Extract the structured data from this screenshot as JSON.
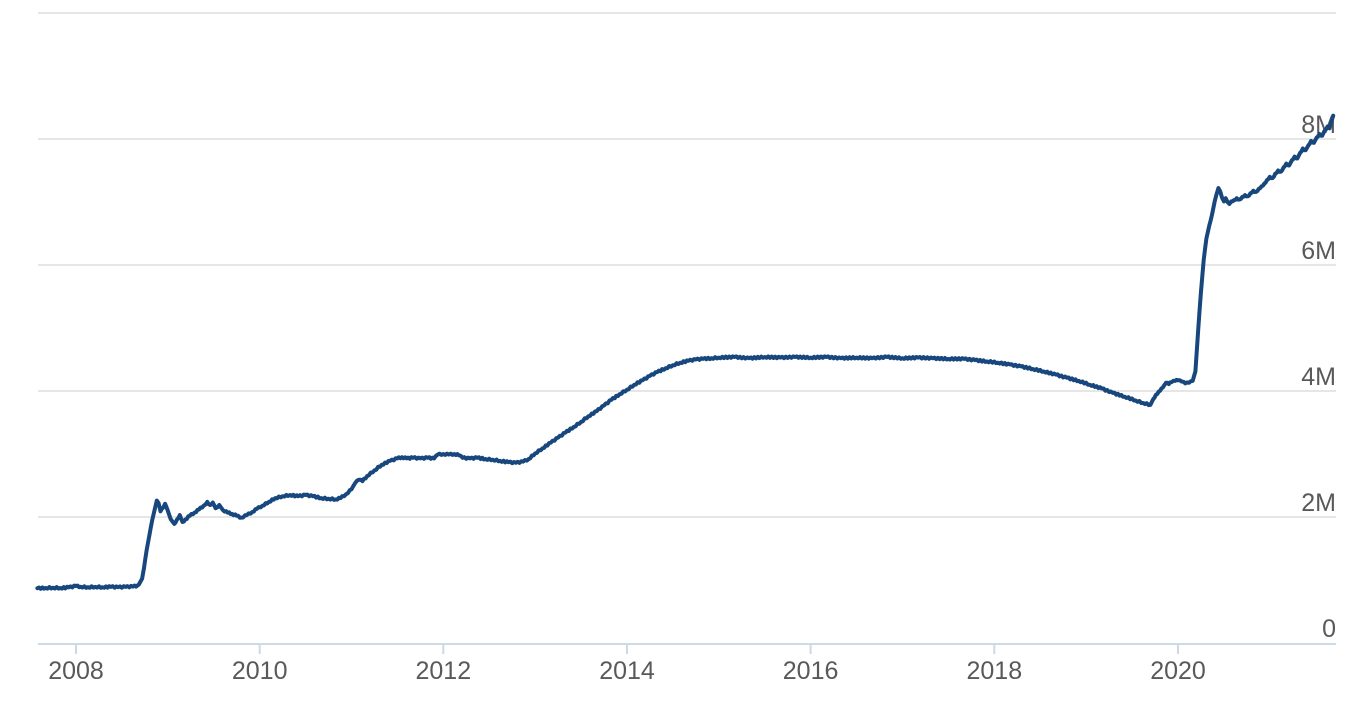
{
  "chart_data": {
    "type": "line",
    "title": "",
    "xlabel": "",
    "ylabel": "",
    "unit_suffix": "M",
    "legend": [],
    "grid": true,
    "y_axis_side": "right",
    "colors": {
      "line": "#17477c",
      "grid": "#e6e6e6",
      "axis": "#ccd9e6",
      "label": "#595959",
      "background": "#ffffff"
    },
    "xlim": [
      2007.58,
      2021.69
    ],
    "ylim": [
      0,
      10
    ],
    "y_ticks": [
      {
        "value": 0,
        "label": "0"
      },
      {
        "value": 2,
        "label": "2M"
      },
      {
        "value": 4,
        "label": "4M"
      },
      {
        "value": 6,
        "label": "6M"
      },
      {
        "value": 8,
        "label": "8M"
      },
      {
        "value": 10,
        "label": ""
      }
    ],
    "x_ticks": [
      {
        "value": 2008,
        "label": "2008"
      },
      {
        "value": 2010,
        "label": "2010"
      },
      {
        "value": 2012,
        "label": "2012"
      },
      {
        "value": 2014,
        "label": "2014"
      },
      {
        "value": 2016,
        "label": "2016"
      },
      {
        "value": 2018,
        "label": "2018"
      },
      {
        "value": 2020,
        "label": "2020"
      }
    ],
    "points": [
      [
        2007.58,
        0.87
      ],
      [
        2007.67,
        0.873
      ],
      [
        2007.75,
        0.878
      ],
      [
        2007.83,
        0.873
      ],
      [
        2007.92,
        0.882
      ],
      [
        2008.0,
        0.905
      ],
      [
        2008.05,
        0.892
      ],
      [
        2008.13,
        0.886
      ],
      [
        2008.21,
        0.891
      ],
      [
        2008.29,
        0.886
      ],
      [
        2008.38,
        0.891
      ],
      [
        2008.46,
        0.886
      ],
      [
        2008.54,
        0.891
      ],
      [
        2008.62,
        0.896
      ],
      [
        2008.67,
        0.912
      ],
      [
        2008.7,
        0.97
      ],
      [
        2008.72,
        1.02
      ],
      [
        2008.74,
        1.19
      ],
      [
        2008.77,
        1.48
      ],
      [
        2008.8,
        1.72
      ],
      [
        2008.83,
        1.95
      ],
      [
        2008.86,
        2.14
      ],
      [
        2008.88,
        2.26
      ],
      [
        2008.9,
        2.22
      ],
      [
        2008.92,
        2.09
      ],
      [
        2008.95,
        2.15
      ],
      [
        2008.97,
        2.21
      ],
      [
        2009.0,
        2.1
      ],
      [
        2009.03,
        1.97
      ],
      [
        2009.07,
        1.89
      ],
      [
        2009.1,
        1.96
      ],
      [
        2009.13,
        2.03
      ],
      [
        2009.16,
        1.92
      ],
      [
        2009.19,
        1.96
      ],
      [
        2009.24,
        2.02
      ],
      [
        2009.29,
        2.07
      ],
      [
        2009.34,
        2.12
      ],
      [
        2009.39,
        2.18
      ],
      [
        2009.43,
        2.24
      ],
      [
        2009.46,
        2.19
      ],
      [
        2009.49,
        2.23
      ],
      [
        2009.52,
        2.14
      ],
      [
        2009.56,
        2.19
      ],
      [
        2009.6,
        2.11
      ],
      [
        2009.65,
        2.07
      ],
      [
        2009.7,
        2.05
      ],
      [
        2009.75,
        2.02
      ],
      [
        2009.8,
        1.99
      ],
      [
        2009.86,
        2.03
      ],
      [
        2009.92,
        2.08
      ],
      [
        2009.97,
        2.13
      ],
      [
        2010.03,
        2.18
      ],
      [
        2010.1,
        2.24
      ],
      [
        2010.17,
        2.3
      ],
      [
        2010.25,
        2.33
      ],
      [
        2010.33,
        2.35
      ],
      [
        2010.42,
        2.33
      ],
      [
        2010.5,
        2.35
      ],
      [
        2010.58,
        2.33
      ],
      [
        2010.67,
        2.3
      ],
      [
        2010.75,
        2.29
      ],
      [
        2010.83,
        2.28
      ],
      [
        2010.88,
        2.3
      ],
      [
        2010.94,
        2.36
      ],
      [
        2011.0,
        2.44
      ],
      [
        2011.04,
        2.54
      ],
      [
        2011.08,
        2.59
      ],
      [
        2011.12,
        2.57
      ],
      [
        2011.17,
        2.65
      ],
      [
        2011.25,
        2.74
      ],
      [
        2011.33,
        2.83
      ],
      [
        2011.42,
        2.89
      ],
      [
        2011.5,
        2.93
      ],
      [
        2011.55,
        2.95
      ],
      [
        2011.6,
        2.93
      ],
      [
        2011.67,
        2.94
      ],
      [
        2011.75,
        2.93
      ],
      [
        2011.83,
        2.94
      ],
      [
        2011.9,
        2.93
      ],
      [
        2011.94,
        2.99
      ],
      [
        2012.0,
        3.0
      ],
      [
        2012.06,
        2.99
      ],
      [
        2012.12,
        3.0
      ],
      [
        2012.17,
        2.98
      ],
      [
        2012.21,
        2.94
      ],
      [
        2012.29,
        2.93
      ],
      [
        2012.37,
        2.94
      ],
      [
        2012.46,
        2.92
      ],
      [
        2012.54,
        2.91
      ],
      [
        2012.62,
        2.89
      ],
      [
        2012.71,
        2.87
      ],
      [
        2012.79,
        2.86
      ],
      [
        2012.87,
        2.88
      ],
      [
        2012.93,
        2.92
      ],
      [
        2013.0,
        3.01
      ],
      [
        2013.08,
        3.09
      ],
      [
        2013.17,
        3.18
      ],
      [
        2013.25,
        3.26
      ],
      [
        2013.33,
        3.34
      ],
      [
        2013.42,
        3.43
      ],
      [
        2013.5,
        3.51
      ],
      [
        2013.58,
        3.6
      ],
      [
        2013.67,
        3.68
      ],
      [
        2013.75,
        3.77
      ],
      [
        2013.83,
        3.86
      ],
      [
        2013.92,
        3.95
      ],
      [
        2014.0,
        4.02
      ],
      [
        2014.08,
        4.1
      ],
      [
        2014.17,
        4.17
      ],
      [
        2014.25,
        4.24
      ],
      [
        2014.33,
        4.3
      ],
      [
        2014.42,
        4.36
      ],
      [
        2014.5,
        4.41
      ],
      [
        2014.58,
        4.45
      ],
      [
        2014.67,
        4.48
      ],
      [
        2014.75,
        4.5
      ],
      [
        2014.83,
        4.51
      ],
      [
        2014.92,
        4.52
      ],
      [
        2015.0,
        4.53
      ],
      [
        2015.17,
        4.54
      ],
      [
        2015.33,
        4.52
      ],
      [
        2015.5,
        4.54
      ],
      [
        2015.67,
        4.53
      ],
      [
        2015.83,
        4.54
      ],
      [
        2016.0,
        4.53
      ],
      [
        2016.17,
        4.54
      ],
      [
        2016.33,
        4.52
      ],
      [
        2016.5,
        4.53
      ],
      [
        2016.67,
        4.52
      ],
      [
        2016.83,
        4.54
      ],
      [
        2017.0,
        4.52
      ],
      [
        2017.17,
        4.53
      ],
      [
        2017.33,
        4.52
      ],
      [
        2017.5,
        4.51
      ],
      [
        2017.67,
        4.51
      ],
      [
        2017.79,
        4.49
      ],
      [
        2017.92,
        4.47
      ],
      [
        2018.04,
        4.45
      ],
      [
        2018.17,
        4.42
      ],
      [
        2018.29,
        4.39
      ],
      [
        2018.42,
        4.35
      ],
      [
        2018.54,
        4.31
      ],
      [
        2018.67,
        4.26
      ],
      [
        2018.79,
        4.21
      ],
      [
        2018.92,
        4.16
      ],
      [
        2019.04,
        4.1
      ],
      [
        2019.17,
        4.04
      ],
      [
        2019.29,
        3.97
      ],
      [
        2019.42,
        3.91
      ],
      [
        2019.54,
        3.85
      ],
      [
        2019.62,
        3.81
      ],
      [
        2019.7,
        3.78
      ],
      [
        2019.73,
        3.87
      ],
      [
        2019.76,
        3.94
      ],
      [
        2019.79,
        3.99
      ],
      [
        2019.82,
        4.04
      ],
      [
        2019.85,
        4.09
      ],
      [
        2019.87,
        4.13
      ],
      [
        2019.9,
        4.11
      ],
      [
        2019.93,
        4.14
      ],
      [
        2019.97,
        4.16
      ],
      [
        2020.0,
        4.17
      ],
      [
        2020.04,
        4.15
      ],
      [
        2020.08,
        4.12
      ],
      [
        2020.12,
        4.13
      ],
      [
        2020.16,
        4.16
      ],
      [
        2020.19,
        4.31
      ],
      [
        2020.22,
        4.97
      ],
      [
        2020.25,
        5.56
      ],
      [
        2020.28,
        6.08
      ],
      [
        2020.31,
        6.42
      ],
      [
        2020.34,
        6.62
      ],
      [
        2020.37,
        6.79
      ],
      [
        2020.4,
        7.01
      ],
      [
        2020.42,
        7.12
      ],
      [
        2020.44,
        7.22
      ],
      [
        2020.46,
        7.17
      ],
      [
        2020.48,
        7.07
      ],
      [
        2020.5,
        7.01
      ],
      [
        2020.52,
        7.06
      ],
      [
        2020.54,
        7.0
      ],
      [
        2020.56,
        6.97
      ],
      [
        2020.58,
        7.01
      ],
      [
        2020.61,
        7.03
      ],
      [
        2020.64,
        7.06
      ],
      [
        2020.67,
        7.04
      ],
      [
        2020.7,
        7.08
      ],
      [
        2020.73,
        7.11
      ],
      [
        2020.76,
        7.09
      ],
      [
        2020.79,
        7.14
      ],
      [
        2020.82,
        7.18
      ],
      [
        2020.85,
        7.16
      ],
      [
        2020.88,
        7.21
      ],
      [
        2020.91,
        7.25
      ],
      [
        2020.94,
        7.29
      ],
      [
        2020.97,
        7.35
      ],
      [
        2021.0,
        7.4
      ],
      [
        2021.03,
        7.38
      ],
      [
        2021.06,
        7.45
      ],
      [
        2021.09,
        7.5
      ],
      [
        2021.12,
        7.48
      ],
      [
        2021.15,
        7.55
      ],
      [
        2021.18,
        7.61
      ],
      [
        2021.21,
        7.58
      ],
      [
        2021.24,
        7.66
      ],
      [
        2021.27,
        7.72
      ],
      [
        2021.3,
        7.69
      ],
      [
        2021.33,
        7.78
      ],
      [
        2021.36,
        7.85
      ],
      [
        2021.39,
        7.82
      ],
      [
        2021.42,
        7.9
      ],
      [
        2021.45,
        7.97
      ],
      [
        2021.48,
        7.94
      ],
      [
        2021.51,
        8.02
      ],
      [
        2021.54,
        8.08
      ],
      [
        2021.57,
        8.05
      ],
      [
        2021.6,
        8.14
      ],
      [
        2021.63,
        8.2
      ],
      [
        2021.65,
        8.17
      ],
      [
        2021.67,
        8.27
      ],
      [
        2021.69,
        8.37
      ]
    ]
  }
}
